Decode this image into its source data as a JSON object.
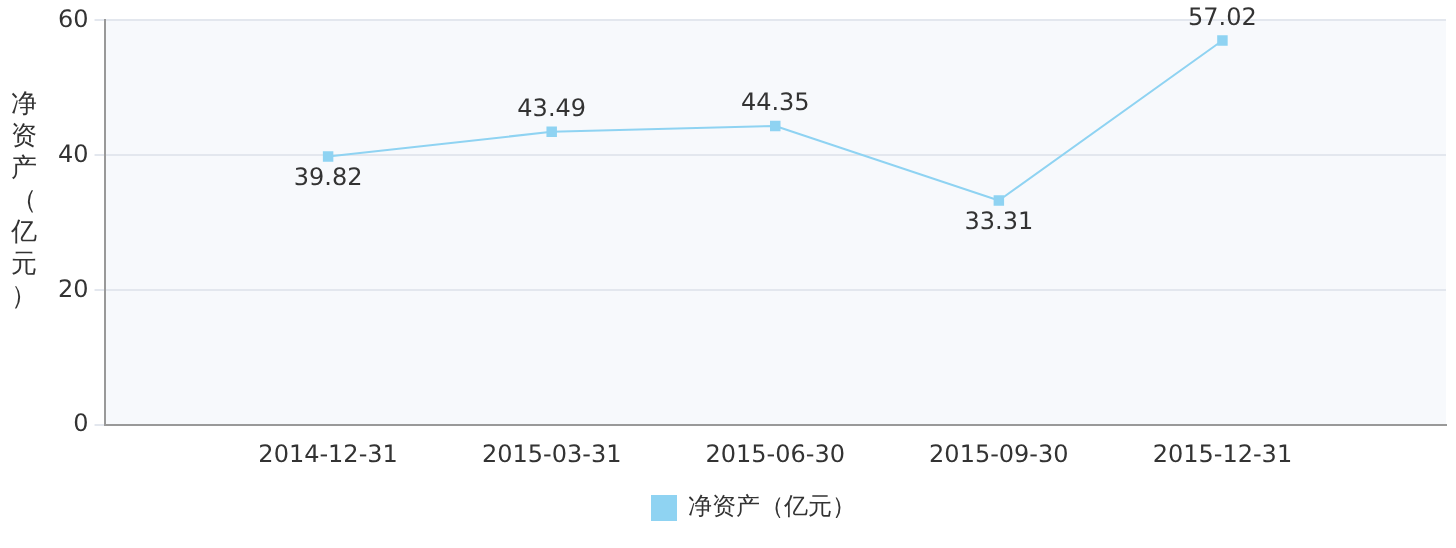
{
  "chart_data": {
    "type": "line",
    "ylabel": "净资产（亿元）",
    "categories": [
      null,
      "2014-12-31",
      "2015-03-31",
      "2015-06-30",
      "2015-09-30",
      "2015-12-31",
      null
    ],
    "series": [
      {
        "name": "净资产（亿元）",
        "color": "#8fd3f2",
        "values": [
          null,
          39.82,
          43.49,
          44.35,
          33.31,
          57.02,
          null
        ]
      }
    ],
    "ylim": [
      0,
      60
    ],
    "yticks": [
      0,
      20,
      40,
      60
    ],
    "grid": "y",
    "legend": "bottom",
    "marker": "square",
    "line_style": "solid",
    "data_labels": true
  }
}
